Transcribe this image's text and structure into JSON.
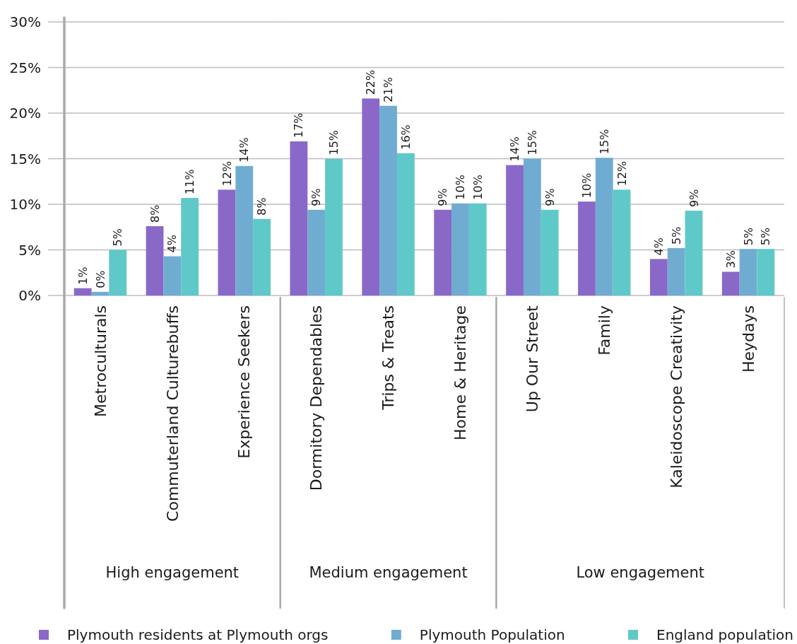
{
  "chart_data": [
    {
      "type": "bar",
      "categories": [
        "Metroculturals",
        "Commuterland Culturebuffs",
        "Experience Seekers"
      ],
      "xlabel": "High engagement",
      "series": [
        {
          "name": "Plymouth residents at Plymouth orgs",
          "color": "#8a68c8",
          "values": [
            0.8,
            7.6,
            11.6
          ],
          "value_labels": [
            "1%",
            "8%",
            "12%"
          ]
        },
        {
          "name": "Plymouth Population",
          "color": "#70acd2",
          "values": [
            0.4,
            4.3,
            14.2
          ],
          "value_labels": [
            "0%",
            "4%",
            "14%"
          ]
        },
        {
          "name": "England population",
          "color": "#5ec9c8",
          "values": [
            5.0,
            10.7,
            8.4
          ],
          "value_labels": [
            "5%",
            "11%",
            "8%"
          ]
        }
      ],
      "ylim": [
        0,
        30
      ],
      "yticks": [
        {
          "value": 0,
          "label": "0%"
        },
        {
          "value": 5,
          "label": "5%"
        },
        {
          "value": 10,
          "label": "10%"
        },
        {
          "value": 15,
          "label": "15%"
        },
        {
          "value": 20,
          "label": "20%"
        },
        {
          "value": 25,
          "label": "25%"
        },
        {
          "value": 30,
          "label": "30%"
        }
      ],
      "grid": "y",
      "legend": "bottom"
    },
    {
      "type": "bar",
      "categories": [
        "Dormitory Dependables",
        "Trips & Treats",
        "Home & Heritage"
      ],
      "xlabel": "Medium engagement",
      "series": [
        {
          "color": "#8a68c8",
          "values": [
            16.9,
            21.6,
            9.4
          ],
          "value_labels": [
            "17%",
            "22%",
            "9%"
          ]
        },
        {
          "color": "#70acd2",
          "values": [
            9.4,
            20.8,
            10.1
          ],
          "value_labels": [
            "9%",
            "21%",
            "10%"
          ]
        },
        {
          "color": "#5ec9c8",
          "values": [
            15.0,
            15.6,
            10.1
          ],
          "value_labels": [
            "15%",
            "16%",
            "10%"
          ]
        }
      ],
      "ylim": [
        0,
        30
      ],
      "yticks": [
        0,
        5,
        10,
        15,
        20,
        25,
        30
      ],
      "grid": "y",
      "tick_labels": "x"
    },
    {
      "type": "bar",
      "categories": [
        "Up Our Street",
        "Family",
        "Kaleidoscope Creativity",
        "Heydays"
      ],
      "xlabel": "Low engagement",
      "series": [
        {
          "color": "#8a68c8",
          "values": [
            14.3,
            10.3,
            4.0,
            2.6
          ],
          "value_labels": [
            "14%",
            "10%",
            "4%",
            "3%"
          ]
        },
        {
          "color": "#70acd2",
          "values": [
            15.0,
            15.1,
            5.2,
            5.1
          ],
          "value_labels": [
            "15%",
            "15%",
            "5%",
            "5%"
          ]
        },
        {
          "color": "#5ec9c8",
          "values": [
            9.4,
            11.6,
            9.3,
            5.1
          ],
          "value_labels": [
            "9%",
            "12%",
            "9%",
            "5%"
          ]
        }
      ],
      "ylim": [
        0,
        30
      ],
      "yticks": [
        0,
        5,
        10,
        15,
        20,
        25,
        30
      ],
      "grid": "y",
      "tick_labels": "x"
    }
  ]
}
